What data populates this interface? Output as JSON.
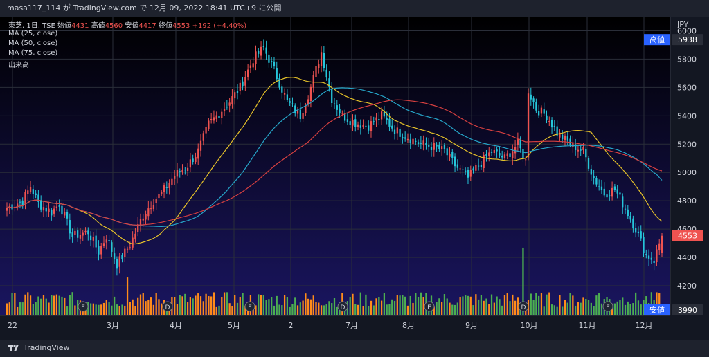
{
  "header": {
    "text": "masa117_114 が TradingView.com で 12月 09, 2022 18:41 UTC+9 に公開"
  },
  "legend": {
    "symbol": "東芝, 1日, TSE",
    "open_label": "始値",
    "open": "4431",
    "high_label": "高値",
    "high": "4560",
    "low_label": "安値",
    "low": "4417",
    "close_label": "終値",
    "close": "4553",
    "change": "+192 (+4.40%)",
    "indicators": [
      "MA (25, close)",
      "MA (50, close)",
      "MA (75, close)",
      "出来高"
    ]
  },
  "footer": {
    "brand": "TradingView"
  },
  "colors": {
    "up": "#ef5350",
    "down": "#26c6da",
    "vol_up": "#ff8c1a",
    "vol_down": "#4caf50",
    "ma25": "#e6c229",
    "ma50": "#26a6c9",
    "ma75": "#d84040"
  },
  "chart_data": {
    "type": "candlestick",
    "currency_label": "JPY",
    "ylim": [
      3990,
      6100
    ],
    "yticks": [
      "6000",
      "5800",
      "5600",
      "5400",
      "5200",
      "5000",
      "4800",
      "4600",
      "4400",
      "4200"
    ],
    "xlabels": [
      "22",
      "3月",
      "4月",
      "5月",
      "2",
      "7月",
      "8月",
      "9月",
      "10月",
      "11月",
      "12月"
    ],
    "high_tag": {
      "label": "高値",
      "value": "5938"
    },
    "last_tag": {
      "value": "4553"
    },
    "low_tag": {
      "label": "安値",
      "value": "3990"
    },
    "anchors": [
      [
        0,
        4750
      ],
      [
        6,
        4800
      ],
      [
        9,
        4900
      ],
      [
        12,
        4780
      ],
      [
        17,
        4720
      ],
      [
        20,
        4780
      ],
      [
        25,
        4550
      ],
      [
        31,
        4580
      ],
      [
        35,
        4440
      ],
      [
        38,
        4550
      ],
      [
        42,
        4350
      ],
      [
        47,
        4490
      ],
      [
        52,
        4700
      ],
      [
        56,
        4800
      ],
      [
        59,
        4850
      ],
      [
        64,
        4980
      ],
      [
        69,
        5050
      ],
      [
        73,
        5150
      ],
      [
        77,
        5340
      ],
      [
        81,
        5420
      ],
      [
        85,
        5500
      ],
      [
        89,
        5600
      ],
      [
        94,
        5800
      ],
      [
        98,
        5880
      ],
      [
        102,
        5720
      ],
      [
        107,
        5500
      ],
      [
        112,
        5400
      ],
      [
        116,
        5600
      ],
      [
        120,
        5850
      ],
      [
        124,
        5520
      ],
      [
        128,
        5400
      ],
      [
        133,
        5350
      ],
      [
        138,
        5330
      ],
      [
        143,
        5400
      ],
      [
        148,
        5300
      ],
      [
        153,
        5250
      ],
      [
        158,
        5200
      ],
      [
        163,
        5180
      ],
      [
        167,
        5150
      ],
      [
        171,
        5050
      ],
      [
        176,
        4960
      ],
      [
        180,
        5050
      ],
      [
        185,
        5150
      ],
      [
        190,
        5100
      ],
      [
        195,
        5200
      ],
      [
        198,
        5080
      ],
      [
        199,
        5580
      ],
      [
        202,
        5450
      ],
      [
        206,
        5400
      ],
      [
        210,
        5280
      ],
      [
        215,
        5200
      ],
      [
        220,
        5150
      ],
      [
        224,
        4960
      ],
      [
        228,
        4850
      ],
      [
        232,
        4880
      ],
      [
        236,
        4750
      ],
      [
        240,
        4600
      ],
      [
        244,
        4420
      ],
      [
        247,
        4380
      ],
      [
        250,
        4560
      ]
    ],
    "volume_spikes": {
      "46": 2.2,
      "197": 4.5,
      "200": 1.5,
      "237": 1.6,
      "226": 1.4,
      "234": 1.3
    }
  }
}
